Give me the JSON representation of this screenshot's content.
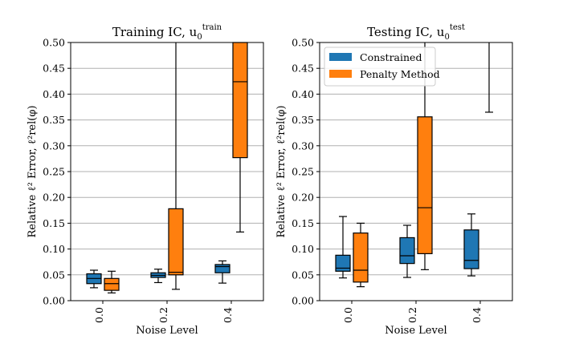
{
  "colors": {
    "constrained": "#1f77b4",
    "penalty": "#ff7f0e",
    "grid": "#b0b0b0",
    "axis": "#000000"
  },
  "chart_data": [
    {
      "type": "boxplot",
      "title": "Training IC, u",
      "title_sub": "0",
      "title_sup": "train",
      "xlabel": "Noise Level",
      "ylabel": "Relative ℓ² Error, ℓ²rel(φ)",
      "ylim": [
        0,
        0.5
      ],
      "yticks": [
        "0.00",
        "0.05",
        "0.10",
        "0.15",
        "0.20",
        "0.25",
        "0.30",
        "0.35",
        "0.40",
        "0.45",
        "0.50"
      ],
      "categories": [
        "0.0",
        "0.2",
        "0.4"
      ],
      "grid": true,
      "legend": null,
      "series": [
        {
          "name": "Constrained",
          "boxes": [
            {
              "whislo": 0.025,
              "q1": 0.033,
              "med": 0.043,
              "q3": 0.052,
              "whishi": 0.059
            },
            {
              "whislo": 0.035,
              "q1": 0.045,
              "med": 0.049,
              "q3": 0.054,
              "whishi": 0.061
            },
            {
              "whislo": 0.034,
              "q1": 0.054,
              "med": 0.066,
              "q3": 0.07,
              "whishi": 0.077
            }
          ]
        },
        {
          "name": "Penalty Method",
          "boxes": [
            {
              "whislo": 0.015,
              "q1": 0.02,
              "med": 0.033,
              "q3": 0.043,
              "whishi": 0.057
            },
            {
              "whislo": 0.022,
              "q1": 0.05,
              "med": 0.055,
              "q3": 0.178,
              "whishi": 0.5
            },
            {
              "whislo": 0.133,
              "q1": 0.277,
              "med": 0.424,
              "q3": 0.5,
              "whishi": 0.5
            }
          ]
        }
      ]
    },
    {
      "type": "boxplot",
      "title": "Testing IC, u",
      "title_sub": "0",
      "title_sup": "test",
      "xlabel": "Noise Level",
      "ylabel": "Relative ℓ² Error, ℓ²rel(φ)",
      "ylim": [
        0,
        0.5
      ],
      "yticks": [
        "0.00",
        "0.05",
        "0.10",
        "0.15",
        "0.20",
        "0.25",
        "0.30",
        "0.35",
        "0.40",
        "0.45",
        "0.50"
      ],
      "categories": [
        "0.0",
        "0.2",
        "0.4"
      ],
      "grid": true,
      "legend": "top-left",
      "legend_labels": [
        "Constrained",
        "Penalty Method"
      ],
      "series": [
        {
          "name": "Constrained",
          "boxes": [
            {
              "whislo": 0.044,
              "q1": 0.057,
              "med": 0.063,
              "q3": 0.088,
              "whishi": 0.163
            },
            {
              "whislo": 0.045,
              "q1": 0.072,
              "med": 0.087,
              "q3": 0.122,
              "whishi": 0.146
            },
            {
              "whislo": 0.048,
              "q1": 0.062,
              "med": 0.078,
              "q3": 0.137,
              "whishi": 0.168
            }
          ]
        },
        {
          "name": "Penalty Method",
          "boxes": [
            {
              "whislo": 0.027,
              "q1": 0.036,
              "med": 0.059,
              "q3": 0.131,
              "whishi": 0.15
            },
            {
              "whislo": 0.06,
              "q1": 0.091,
              "med": 0.18,
              "q3": 0.356,
              "whishi": 0.5
            },
            {
              "whislo": 0.365,
              "q1": 0.5,
              "med": 0.5,
              "q3": 0.5,
              "whishi": 0.5
            }
          ]
        }
      ]
    }
  ]
}
